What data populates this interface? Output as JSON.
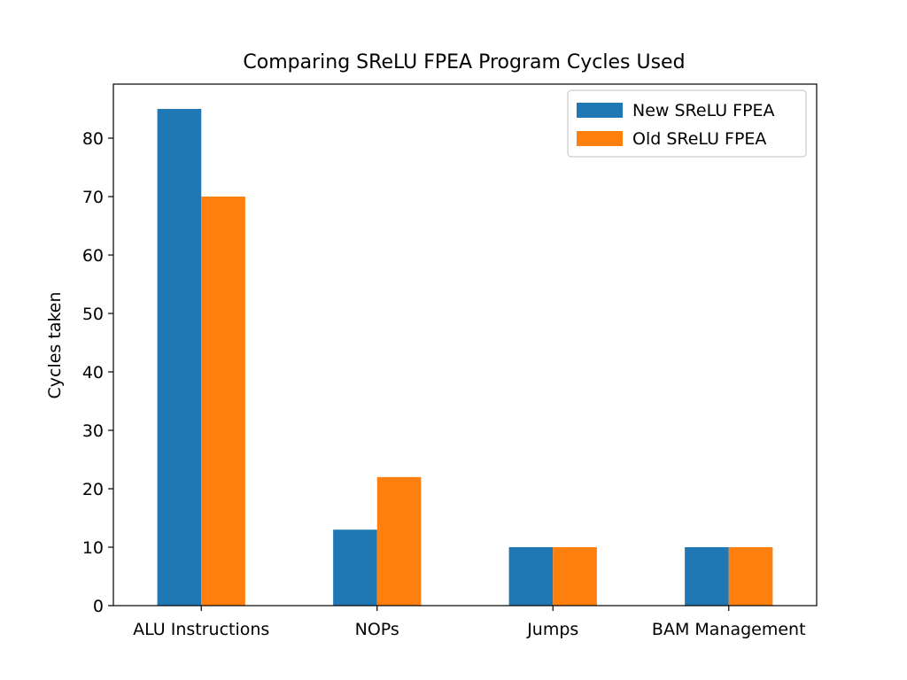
{
  "chart_data": {
    "type": "bar",
    "title": "Comparing SReLU FPEA Program Cycles Used",
    "xlabel": "",
    "ylabel": "Cycles taken",
    "categories": [
      "ALU Instructions",
      "NOPs",
      "Jumps",
      "BAM Management"
    ],
    "series": [
      {
        "name": "New SReLU FPEA",
        "color": "#1f77b4",
        "values": [
          85,
          13,
          10,
          10
        ]
      },
      {
        "name": "Old SReLU FPEA",
        "color": "#ff7f0e",
        "values": [
          70,
          22,
          10,
          10
        ]
      }
    ],
    "ylim": [
      0,
      89.25
    ],
    "yticks": [
      0,
      10,
      20,
      30,
      40,
      50,
      60,
      70,
      80
    ],
    "grid": false,
    "legend_position": "top-right"
  }
}
